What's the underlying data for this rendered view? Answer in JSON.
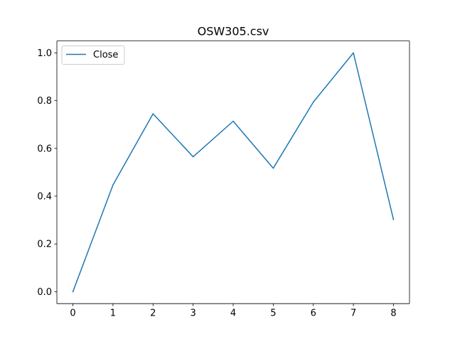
{
  "chart_data": {
    "type": "line",
    "title": "OSW305.csv",
    "xlabel": "",
    "ylabel": "",
    "x": [
      0,
      1,
      2,
      3,
      4,
      5,
      6,
      7,
      8
    ],
    "xlim": [
      -0.4,
      8.4
    ],
    "ylim": [
      -0.05,
      1.05
    ],
    "x_ticks": [
      0,
      1,
      2,
      3,
      4,
      5,
      6,
      7,
      8
    ],
    "y_ticks": [
      0.0,
      0.2,
      0.4,
      0.6,
      0.8,
      1.0
    ],
    "x_tick_labels": [
      "0",
      "1",
      "2",
      "3",
      "4",
      "5",
      "6",
      "7",
      "8"
    ],
    "y_tick_labels": [
      "0.0",
      "0.2",
      "0.4",
      "0.6",
      "0.8",
      "1.0"
    ],
    "grid": false,
    "legend": "upper-left",
    "series": [
      {
        "name": "Close",
        "color": "#1f77b4",
        "values": [
          0.0,
          0.447,
          0.745,
          0.565,
          0.714,
          0.517,
          0.794,
          1.0,
          0.302
        ]
      }
    ]
  }
}
